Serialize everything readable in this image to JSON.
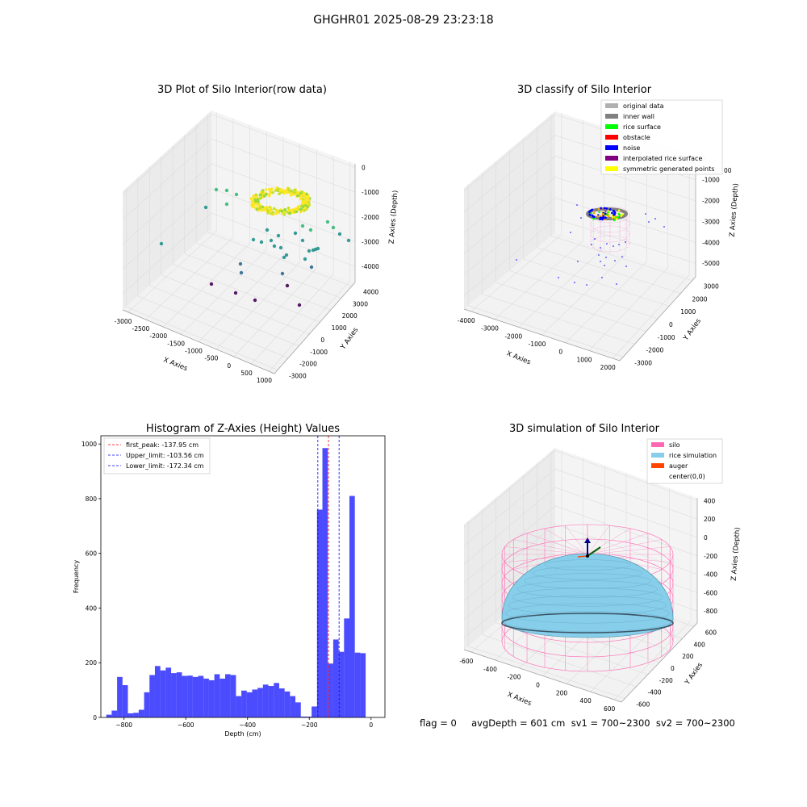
{
  "suptitle": "GHGHR01 2025-08-29 23:23:18",
  "footer": "flag = 0     avgDepth = 601 cm  sv1 = 700~2300  sv2 = 700~2300",
  "chart_data": [
    {
      "type": "scatter",
      "title": "3D Plot of Silo Interior(row data)",
      "xlabel": "X Axies",
      "ylabel": "Y Axies",
      "zlabel": "Z Axies (Depth)",
      "x_ticks": [
        "-3000",
        "-2500",
        "-2000",
        "-1500",
        "-1000",
        "-500",
        "0",
        "500",
        "1000"
      ],
      "y_ticks": [
        "-3000",
        "-2000",
        "-1000",
        "0",
        "1000",
        "2000",
        "3000",
        "4000"
      ],
      "z_ticks": [
        "0",
        "-1000",
        "-2000",
        "-3000",
        "-4000"
      ],
      "colormap": [
        "#440154",
        "#31688e",
        "#21918c",
        "#35b779",
        "#90d743",
        "#fde725"
      ]
    },
    {
      "type": "scatter",
      "title": "3D classify of Silo Interior",
      "xlabel": "X Axies",
      "ylabel": "Y Axies",
      "zlabel": "Z Axies (Depth)",
      "x_ticks": [
        "-4000",
        "-3000",
        "-2000",
        "-1000",
        "0",
        "1000",
        "2000"
      ],
      "y_ticks": [
        "-3000",
        "-2000",
        "-1000",
        "0",
        "1000",
        "2000",
        "3000"
      ],
      "z_ticks": [
        "0",
        "-1000",
        "-2000",
        "-3000",
        "-4000",
        "-5000"
      ],
      "legend": [
        {
          "label": "original data",
          "color": "#b0b0b0"
        },
        {
          "label": "inner wall",
          "color": "#808080"
        },
        {
          "label": "rice surface",
          "color": "#00ff00"
        },
        {
          "label": "obstacle",
          "color": "#ff0000"
        },
        {
          "label": "noise",
          "color": "#0000ff"
        },
        {
          "label": "interpolated rice surface",
          "color": "#800080"
        },
        {
          "label": "symmetric generated points",
          "color": "#ffff00"
        }
      ],
      "legend_extra": "00",
      "legend_position": "top-right"
    },
    {
      "type": "bar",
      "title": "Histogram of Z-Axies (Height) Values",
      "xlabel": "Depth (cm)",
      "ylabel": "Frequency",
      "xlim": [
        -875,
        45
      ],
      "ylim": [
        0,
        1030
      ],
      "x_ticks": [
        -800,
        -600,
        -400,
        -200,
        0
      ],
      "y_ticks": [
        0,
        200,
        400,
        600,
        800,
        1000
      ],
      "bin_start": -857.5,
      "bin_width": 17.5,
      "bar_color": "#0000ff",
      "values": [
        10,
        25,
        148,
        118,
        15,
        17,
        28,
        92,
        155,
        188,
        172,
        182,
        162,
        165,
        152,
        153,
        148,
        152,
        142,
        136,
        158,
        142,
        158,
        155,
        78,
        98,
        92,
        102,
        108,
        120,
        115,
        126,
        106,
        95,
        78,
        55,
        3,
        3,
        40,
        760,
        985,
        197,
        285,
        240,
        362,
        810,
        237,
        235
      ],
      "lines": [
        {
          "label": "first_peak: -137.95 cm",
          "x": -137.95,
          "color": "#ff0000"
        },
        {
          "label": "Upper_limit: -103.56 cm",
          "x": -103.56,
          "color": "#0000ff"
        },
        {
          "label": "Lower_limit: -172.34 cm",
          "x": -172.34,
          "color": "#0000ff"
        }
      ],
      "legend_position": "upper left"
    },
    {
      "type": "surface",
      "title": "3D simulation of Silo Interior",
      "xlabel": "X Axies",
      "ylabel": "Y Axies",
      "zlabel": "Z Axies (Depth)",
      "x_ticks": [
        "-600",
        "-400",
        "-200",
        "0",
        "200",
        "400",
        "600"
      ],
      "y_ticks": [
        "-600",
        "-400",
        "-200",
        "0",
        "200",
        "400",
        "600"
      ],
      "z_ticks": [
        "400",
        "200",
        "0",
        "-200",
        "-400",
        "-600",
        "-800"
      ],
      "legend": [
        {
          "label": "silo",
          "color": "#ff69b4"
        },
        {
          "label": "rice simulation",
          "color": "#87ceeb"
        },
        {
          "label": "auger",
          "color": "#ff4500"
        },
        {
          "label": "center(0,0)",
          "color": ""
        }
      ],
      "legend_position": "top-right"
    }
  ]
}
